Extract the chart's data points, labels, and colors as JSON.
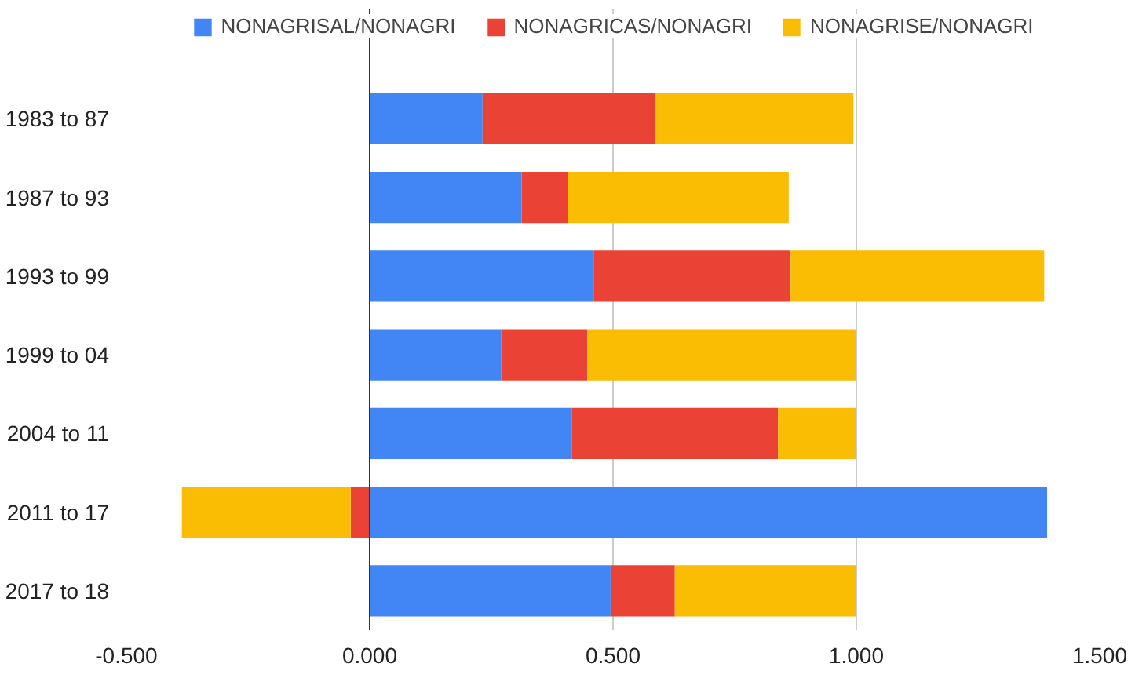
{
  "chart_data": {
    "type": "bar",
    "orientation": "horizontal",
    "stacked": true,
    "categories": [
      "1983 to 87",
      "1987 to 93",
      "1993 to 99",
      "1999 to 04",
      "2004 to 11",
      "2011 to 17",
      "2017 to 18"
    ],
    "series": [
      {
        "name": "NONAGRISAL/NONAGRI",
        "color": "#4285f4",
        "values": [
          0.232,
          0.312,
          0.46,
          0.27,
          0.415,
          1.392,
          0.495
        ]
      },
      {
        "name": "NONAGRICAS/NONAGRI",
        "color": "#ea4335",
        "values": [
          0.354,
          0.096,
          0.405,
          0.177,
          0.424,
          -0.039,
          0.132
        ]
      },
      {
        "name": "NONAGRISE/NONAGRI",
        "color": "#fbbc04",
        "values": [
          0.408,
          0.453,
          0.521,
          0.553,
          0.161,
          -0.347,
          0.373
        ]
      }
    ],
    "xlim": [
      -0.5,
      1.5
    ],
    "xticks": [
      {
        "value": -0.5,
        "label": "-0.500"
      },
      {
        "value": 0,
        "label": "0.000"
      },
      {
        "value": 0.5,
        "label": "0.500"
      },
      {
        "value": 1,
        "label": "1.000"
      },
      {
        "value": 1.5,
        "label": "1.500"
      }
    ],
    "grid": "x",
    "legend": "top"
  }
}
